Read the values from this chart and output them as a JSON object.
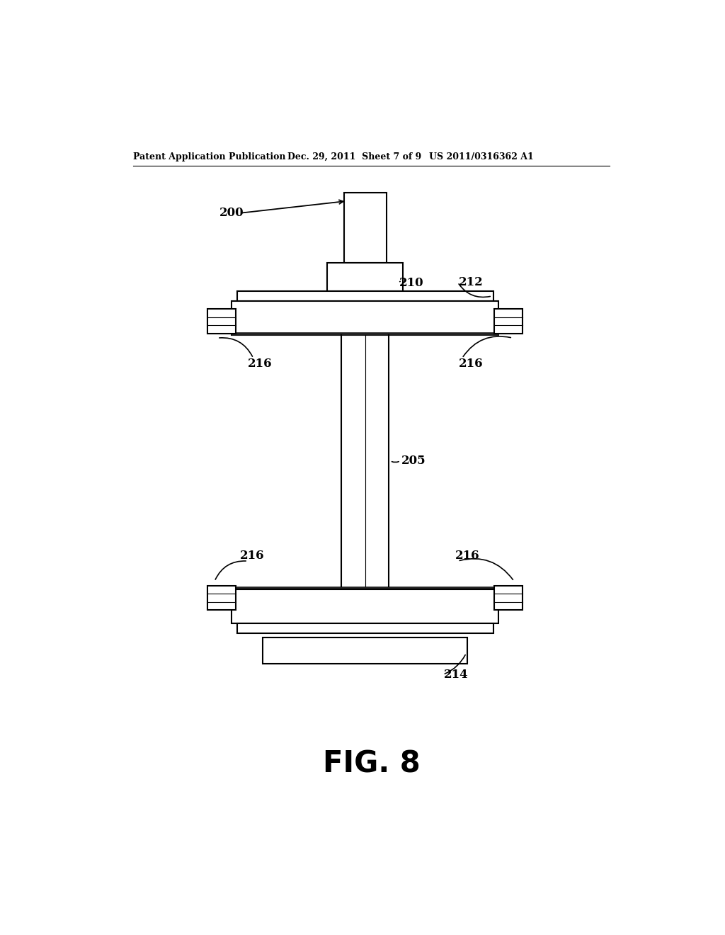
{
  "bg_color": "#ffffff",
  "line_color": "#000000",
  "header_left": "Patent Application Publication",
  "header_mid": "Dec. 29, 2011  Sheet 7 of 9",
  "header_right": "US 2011/0316362 A1",
  "figure_label": "FIG. 8",
  "lw": 1.5
}
